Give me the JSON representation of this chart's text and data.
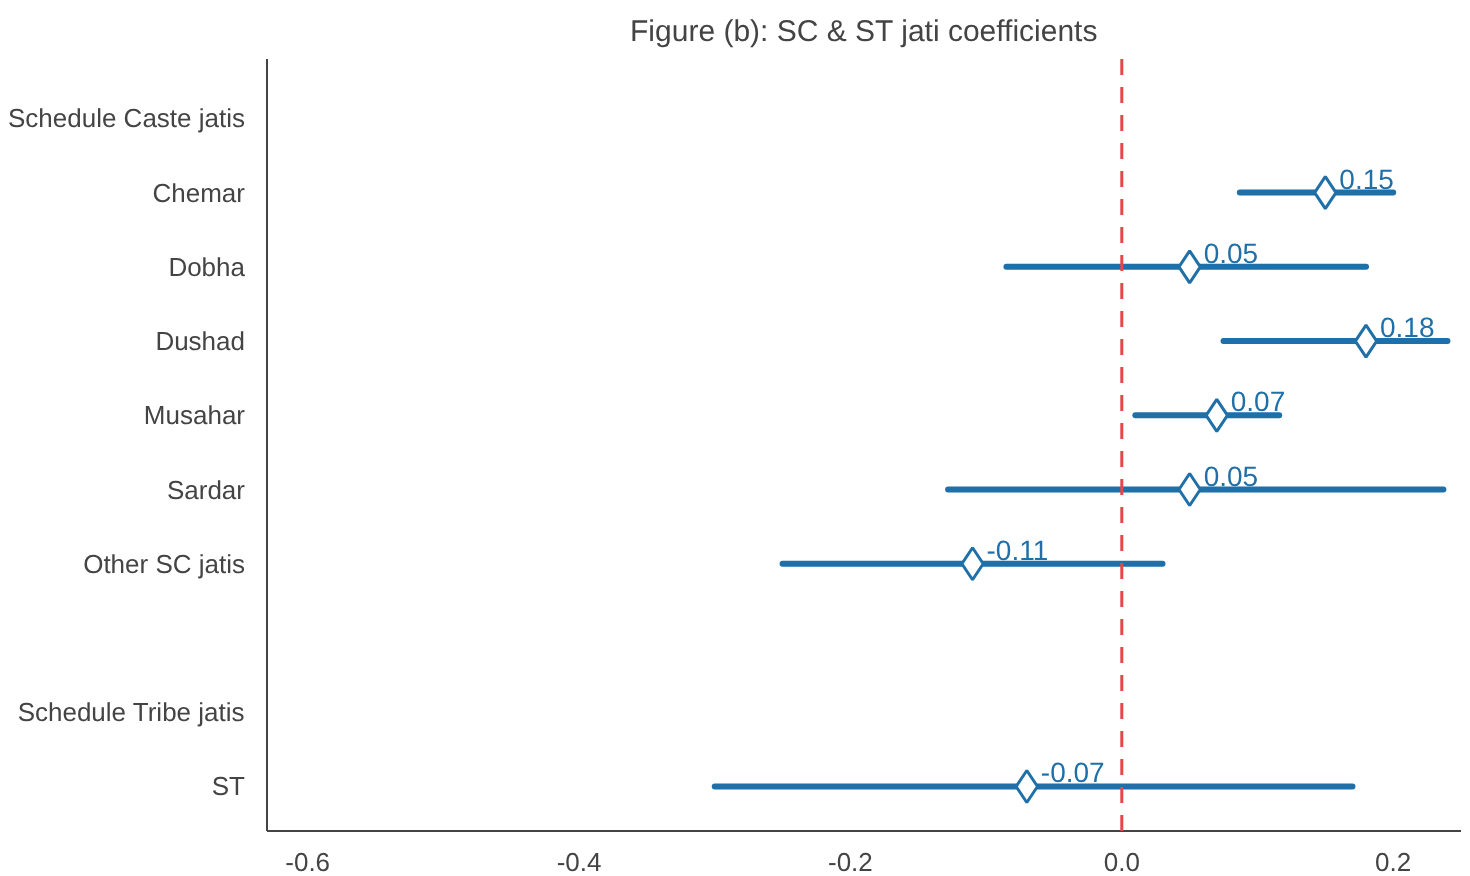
{
  "chart_data": {
    "type": "scatter",
    "title": "Figure (b): SC & ST jati coefficients",
    "orientation": "horizontal",
    "categories": [
      "Schedule Caste jatis",
      "Chemar",
      "Dobha",
      "Dushad",
      "Musahar",
      "Sardar",
      "Other SC jatis",
      null,
      "Schedule Tribe jatis",
      "ST"
    ],
    "series": [
      {
        "color": "#1f6fa8",
        "values": [
          null,
          0.15,
          0.05,
          0.18,
          0.07,
          0.05,
          -0.11,
          null,
          null,
          -0.07
        ],
        "errors": [
          null,
          [
            0.087,
            0.2
          ],
          [
            -0.085,
            0.18
          ],
          [
            0.075,
            0.24
          ],
          [
            0.01,
            0.116
          ],
          [
            -0.128,
            0.237
          ],
          [
            -0.25,
            0.03
          ],
          null,
          null,
          [
            -0.3,
            0.17
          ]
        ]
      }
    ],
    "marker": "diamond",
    "data_labels": true,
    "xlim": [
      -0.63,
      0.25
    ],
    "xticks": [
      {
        "value": -0.6,
        "label": "-0.6"
      },
      {
        "value": -0.4,
        "label": "-0.4"
      },
      {
        "value": -0.2,
        "label": "-0.2"
      },
      {
        "value": 0,
        "label": "0.0"
      },
      {
        "value": 0.2,
        "label": "0.2"
      }
    ],
    "ref_lines": [
      {
        "axis": "x",
        "value": 0,
        "color": "#e8474a",
        "line_style": "dashed"
      }
    ],
    "grid": false
  }
}
